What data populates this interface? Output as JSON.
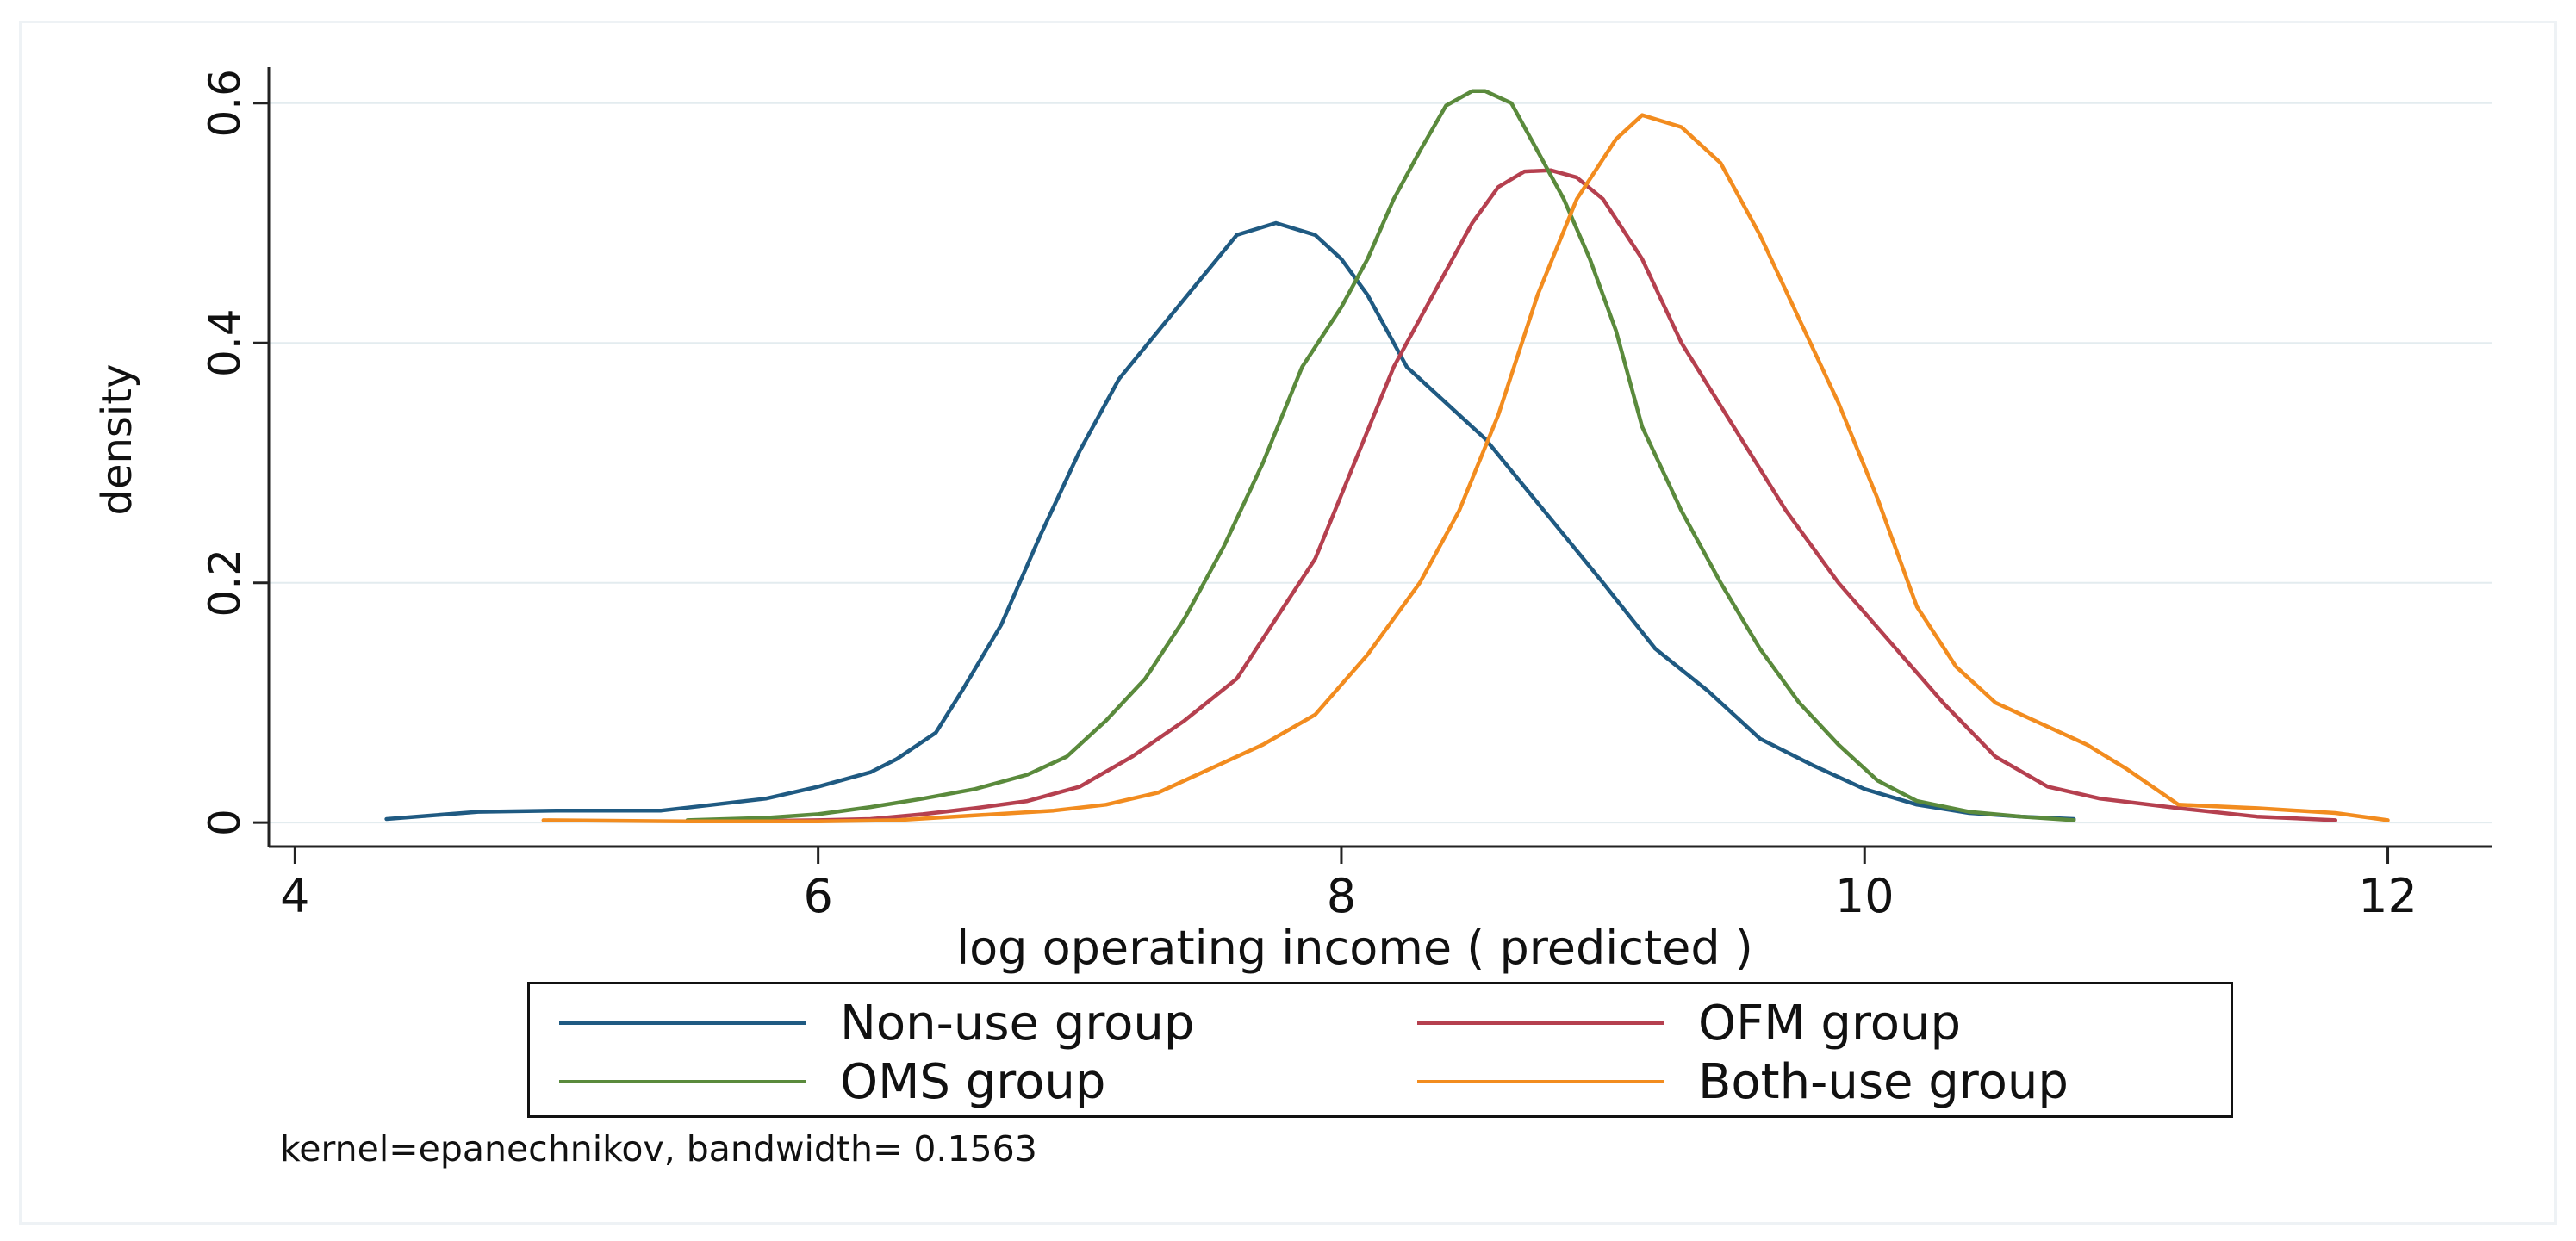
{
  "chart_data": {
    "type": "line",
    "title": "",
    "xlabel": "log operating income ( predicted )",
    "ylabel": "density",
    "xlim": [
      3.9,
      12.4
    ],
    "ylim": [
      -0.02,
      0.63
    ],
    "xticks": [
      "4",
      "6",
      "8",
      "10",
      "12"
    ],
    "yticks": [
      "0",
      "0.2",
      "0.4",
      "0.6"
    ],
    "grid": true,
    "legend_position": "bottom",
    "note": "kernel=epanechnikov, bandwidth= 0.1563",
    "series": [
      {
        "name": "Non-use group",
        "color": "#1f5a82",
        "x": [
          4.35,
          4.7,
          5.0,
          5.4,
          5.6,
          5.8,
          6.0,
          6.2,
          6.3,
          6.45,
          6.55,
          6.7,
          6.85,
          7.0,
          7.15,
          7.3,
          7.45,
          7.6,
          7.75,
          7.9,
          8.0,
          8.1,
          8.25,
          8.4,
          8.55,
          8.7,
          8.85,
          9.0,
          9.2,
          9.4,
          9.6,
          9.8,
          10.0,
          10.2,
          10.4,
          10.6,
          10.8
        ],
        "y": [
          0.003,
          0.009,
          0.01,
          0.01,
          0.015,
          0.02,
          0.03,
          0.042,
          0.053,
          0.075,
          0.11,
          0.165,
          0.24,
          0.31,
          0.37,
          0.41,
          0.45,
          0.49,
          0.5,
          0.49,
          0.47,
          0.44,
          0.38,
          0.35,
          0.32,
          0.28,
          0.24,
          0.2,
          0.145,
          0.11,
          0.07,
          0.048,
          0.028,
          0.015,
          0.008,
          0.005,
          0.003
        ]
      },
      {
        "name": "OFM group",
        "color": "#b5404f",
        "x": [
          5.6,
          6.0,
          6.2,
          6.4,
          6.6,
          6.8,
          7.0,
          7.2,
          7.4,
          7.6,
          7.75,
          7.9,
          8.05,
          8.2,
          8.35,
          8.5,
          8.6,
          8.7,
          8.8,
          8.9,
          9.0,
          9.15,
          9.3,
          9.5,
          9.7,
          9.9,
          10.1,
          10.3,
          10.5,
          10.7,
          10.9,
          11.2,
          11.5,
          11.8
        ],
        "y": [
          0.001,
          0.002,
          0.003,
          0.007,
          0.012,
          0.018,
          0.03,
          0.055,
          0.085,
          0.12,
          0.17,
          0.22,
          0.3,
          0.38,
          0.44,
          0.5,
          0.53,
          0.543,
          0.544,
          0.538,
          0.52,
          0.47,
          0.4,
          0.33,
          0.26,
          0.2,
          0.15,
          0.1,
          0.055,
          0.03,
          0.02,
          0.012,
          0.005,
          0.002
        ]
      },
      {
        "name": "OMS group",
        "color": "#5a8a3c",
        "x": [
          5.5,
          5.8,
          6.0,
          6.2,
          6.4,
          6.6,
          6.8,
          6.95,
          7.1,
          7.25,
          7.4,
          7.55,
          7.7,
          7.85,
          8.0,
          8.1,
          8.2,
          8.3,
          8.4,
          8.5,
          8.55,
          8.65,
          8.75,
          8.85,
          8.95,
          9.05,
          9.15,
          9.3,
          9.45,
          9.6,
          9.75,
          9.9,
          10.05,
          10.2,
          10.4,
          10.6,
          10.8
        ],
        "y": [
          0.002,
          0.004,
          0.007,
          0.013,
          0.02,
          0.028,
          0.04,
          0.055,
          0.085,
          0.12,
          0.17,
          0.23,
          0.3,
          0.38,
          0.43,
          0.47,
          0.52,
          0.56,
          0.598,
          0.61,
          0.61,
          0.6,
          0.56,
          0.52,
          0.47,
          0.41,
          0.33,
          0.26,
          0.2,
          0.145,
          0.1,
          0.065,
          0.035,
          0.018,
          0.009,
          0.005,
          0.002
        ]
      },
      {
        "name": "Both-use group",
        "color": "#f28c1f",
        "x": [
          4.95,
          5.5,
          6.0,
          6.3,
          6.6,
          6.9,
          7.1,
          7.3,
          7.5,
          7.7,
          7.9,
          8.1,
          8.3,
          8.45,
          8.6,
          8.75,
          8.9,
          9.05,
          9.15,
          9.3,
          9.45,
          9.6,
          9.75,
          9.9,
          10.05,
          10.2,
          10.35,
          10.5,
          10.7,
          10.85,
          11.0,
          11.2,
          11.5,
          11.8,
          12.0
        ],
        "y": [
          0.002,
          0.001,
          0.001,
          0.002,
          0.006,
          0.01,
          0.015,
          0.025,
          0.045,
          0.065,
          0.09,
          0.14,
          0.2,
          0.26,
          0.34,
          0.44,
          0.52,
          0.57,
          0.59,
          0.58,
          0.55,
          0.49,
          0.42,
          0.35,
          0.27,
          0.18,
          0.13,
          0.1,
          0.08,
          0.065,
          0.045,
          0.015,
          0.012,
          0.008,
          0.002
        ]
      }
    ]
  }
}
